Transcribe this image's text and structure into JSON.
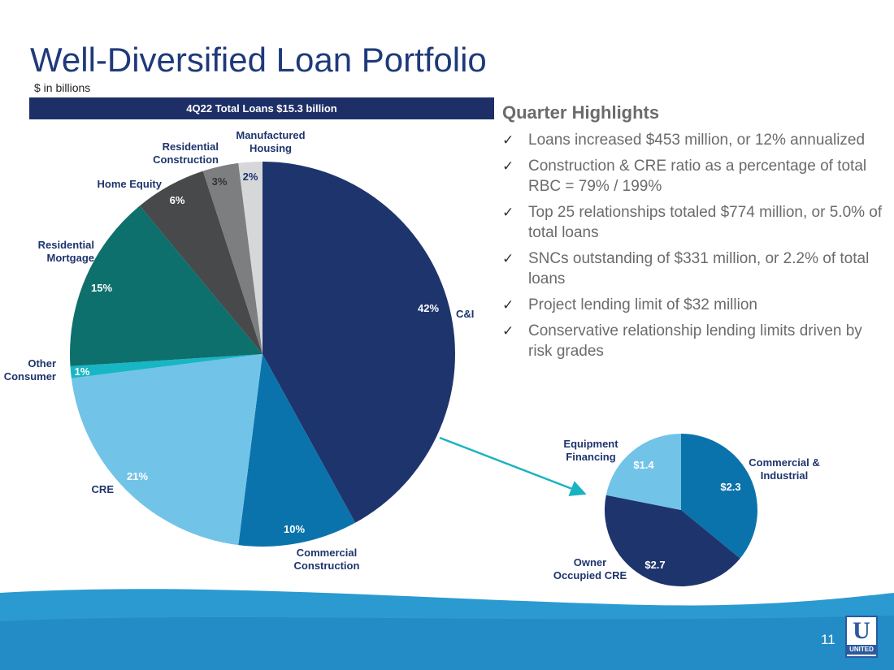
{
  "title": "Well-Diversified Loan Portfolio",
  "subtitle": "$ in billions",
  "banner": "4Q22 Total Loans $15.3 billion",
  "highlights": {
    "heading": "Quarter Highlights",
    "check_icon": "✓",
    "items": [
      "Loans increased $453 million, or 12% annualized",
      "Construction & CRE ratio as a percentage of total RBC = 79% / 199%",
      "Top 25 relationships totaled $774 million, or 5.0% of total loans",
      "SNCs outstanding of $331 million, or 2.2% of total loans",
      "Project lending limit of $32 million",
      "Conservative relationship lending limits driven by risk grades"
    ]
  },
  "page_number": "11",
  "logo": {
    "letter": "U",
    "text": "UNITED"
  },
  "colors": {
    "title": "#1f3a7a",
    "banner": "#1e2f68",
    "accent_teal": "#19b3c0",
    "wave_light": "#2b9ad0",
    "wave_dark": "#1e7fbc"
  },
  "chart_data": [
    {
      "type": "pie",
      "slices": [
        {
          "label": "C&I",
          "value": 42,
          "display": "42%",
          "color": "#1e346c"
        },
        {
          "label": "Commercial Construction",
          "value": 10,
          "display": "10%",
          "color": "#0b73ab"
        },
        {
          "label": "CRE",
          "value": 21,
          "display": "21%",
          "color": "#72c3e8"
        },
        {
          "label": "Other Consumer",
          "value": 1,
          "display": "1%",
          "color": "#18b6c4"
        },
        {
          "label": "Residential Mortgage",
          "value": 15,
          "display": "15%",
          "color": "#0d706d"
        },
        {
          "label": "Home Equity",
          "value": 6,
          "display": "6%",
          "color": "#47494b"
        },
        {
          "label": "Residential Construction",
          "value": 3,
          "display": "3%",
          "color": "#7c7e80"
        },
        {
          "label": "Manufactured Housing",
          "value": 2,
          "display": "2%",
          "color": "#d6d7d9"
        }
      ]
    },
    {
      "type": "pie",
      "unit": "$ in billions",
      "slices": [
        {
          "label": "Commercial & Industrial",
          "value": 2.3,
          "display": "$2.3",
          "color": "#0b73ab"
        },
        {
          "label": "Owner Occupied CRE",
          "value": 2.7,
          "display": "$2.7",
          "color": "#1e346c"
        },
        {
          "label": "Equipment Financing",
          "value": 1.4,
          "display": "$1.4",
          "color": "#72c3e8"
        }
      ]
    }
  ]
}
